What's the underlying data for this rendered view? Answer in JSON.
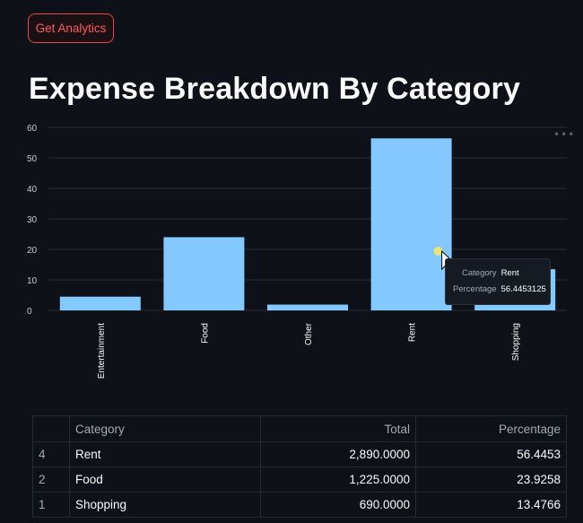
{
  "button": {
    "label": "Get Analytics"
  },
  "page_title": "Expense Breakdown By Category",
  "menu_dots": "•••",
  "chart_data": {
    "type": "bar",
    "categories": [
      "Entertainment",
      "Food",
      "Other",
      "Rent",
      "Shopping"
    ],
    "values": [
      4.5,
      24.0,
      1.9,
      56.4,
      13.5
    ],
    "ylim": [
      0,
      60
    ],
    "yticks": [
      0,
      10,
      20,
      30,
      40,
      50,
      60
    ],
    "color": "#83c9ff",
    "grid": true
  },
  "tooltip": {
    "category_key": "Category",
    "category_value": "Rent",
    "percentage_key": "Percentage",
    "percentage_value": "56.4453125"
  },
  "table": {
    "headers": [
      "",
      "Category",
      "Total",
      "Percentage"
    ],
    "rows": [
      {
        "index": "4",
        "category": "Rent",
        "total": "2,890.0000",
        "percentage": "56.4453"
      },
      {
        "index": "2",
        "category": "Food",
        "total": "1,225.0000",
        "percentage": "23.9258"
      },
      {
        "index": "1",
        "category": "Shopping",
        "total": "690.0000",
        "percentage": "13.4766"
      }
    ]
  }
}
